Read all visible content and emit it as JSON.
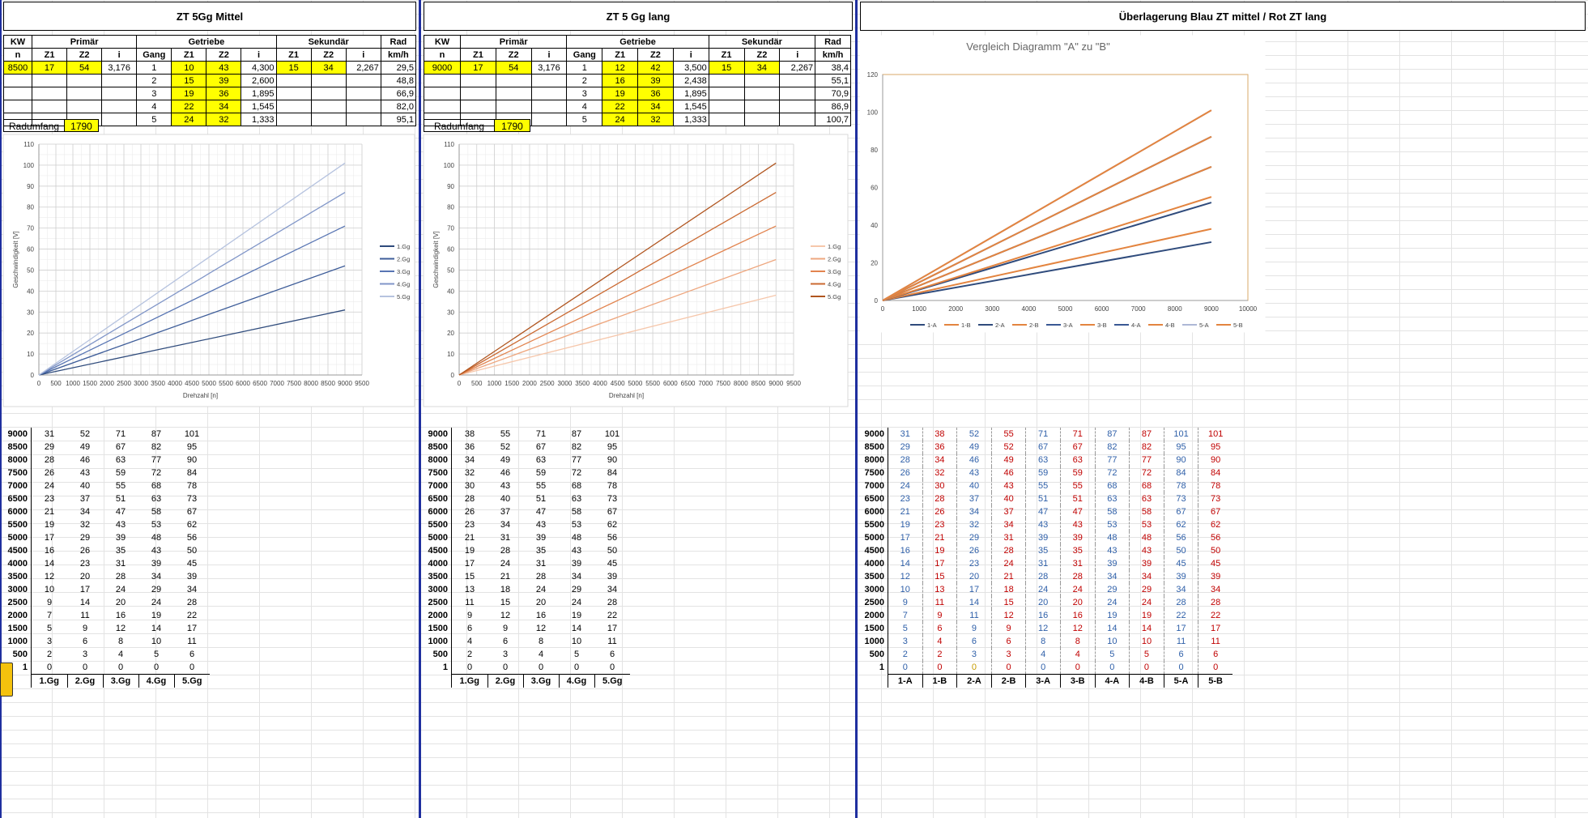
{
  "panels": [
    {
      "id": "A",
      "title": "ZT 5Gg Mittel",
      "kw": "8500",
      "primary": {
        "z1": "17",
        "z2": "54",
        "i": "3,176"
      },
      "secondary": {
        "z1": "15",
        "z2": "34",
        "i": "2,267"
      },
      "gears": [
        {
          "gang": "1",
          "z1": "10",
          "z2": "43",
          "i": "4,300",
          "kmh": "29,5"
        },
        {
          "gang": "2",
          "z1": "15",
          "z2": "39",
          "i": "2,600",
          "kmh": "48,8"
        },
        {
          "gang": "3",
          "z1": "19",
          "z2": "36",
          "i": "1,895",
          "kmh": "66,9"
        },
        {
          "gang": "4",
          "z1": "22",
          "z2": "34",
          "i": "1,545",
          "kmh": "82,0"
        },
        {
          "gang": "5",
          "z1": "24",
          "z2": "32",
          "i": "1,333",
          "kmh": "95,1"
        }
      ],
      "radumfang_label": "Radumfang",
      "radumfang": "1790"
    },
    {
      "id": "B",
      "title": "ZT 5 Gg lang",
      "kw": "9000",
      "primary": {
        "z1": "17",
        "z2": "54",
        "i": "3,176"
      },
      "secondary": {
        "z1": "15",
        "z2": "34",
        "i": "2,267"
      },
      "gears": [
        {
          "gang": "1",
          "z1": "12",
          "z2": "42",
          "i": "3,500",
          "kmh": "38,4"
        },
        {
          "gang": "2",
          "z1": "16",
          "z2": "39",
          "i": "2,438",
          "kmh": "55,1"
        },
        {
          "gang": "3",
          "z1": "19",
          "z2": "36",
          "i": "1,895",
          "kmh": "70,9"
        },
        {
          "gang": "4",
          "z1": "22",
          "z2": "34",
          "i": "1,545",
          "kmh": "86,9"
        },
        {
          "gang": "5",
          "z1": "24",
          "z2": "32",
          "i": "1,333",
          "kmh": "100,7"
        }
      ],
      "radumfang_label": "Radumfang",
      "radumfang": "1790"
    }
  ],
  "headers": {
    "kw": "KW",
    "primar": "Primär",
    "getriebe": "Getriebe",
    "sekundar": "Sekundär",
    "rad": "Rad",
    "n": "n",
    "z1": "Z1",
    "z2": "Z2",
    "i": "i",
    "gang": "Gang",
    "kmh": "km/h"
  },
  "comparison_title": "Überlagerung Blau ZT mittel / Rot ZT lang",
  "rpm_rows": [
    "9000",
    "8500",
    "8000",
    "7500",
    "7000",
    "6500",
    "6000",
    "5500",
    "5000",
    "4500",
    "4000",
    "3500",
    "3000",
    "2500",
    "2000",
    "1500",
    "1000",
    "500",
    "1"
  ],
  "table_A": [
    [
      "31",
      "52",
      "71",
      "87",
      "101"
    ],
    [
      "29",
      "49",
      "67",
      "82",
      "95"
    ],
    [
      "28",
      "46",
      "63",
      "77",
      "90"
    ],
    [
      "26",
      "43",
      "59",
      "72",
      "84"
    ],
    [
      "24",
      "40",
      "55",
      "68",
      "78"
    ],
    [
      "23",
      "37",
      "51",
      "63",
      "73"
    ],
    [
      "21",
      "34",
      "47",
      "58",
      "67"
    ],
    [
      "19",
      "32",
      "43",
      "53",
      "62"
    ],
    [
      "17",
      "29",
      "39",
      "48",
      "56"
    ],
    [
      "16",
      "26",
      "35",
      "43",
      "50"
    ],
    [
      "14",
      "23",
      "31",
      "39",
      "45"
    ],
    [
      "12",
      "20",
      "28",
      "34",
      "39"
    ],
    [
      "10",
      "17",
      "24",
      "29",
      "34"
    ],
    [
      "9",
      "14",
      "20",
      "24",
      "28"
    ],
    [
      "7",
      "11",
      "16",
      "19",
      "22"
    ],
    [
      "5",
      "9",
      "12",
      "14",
      "17"
    ],
    [
      "3",
      "6",
      "8",
      "10",
      "11"
    ],
    [
      "2",
      "3",
      "4",
      "5",
      "6"
    ],
    [
      "0",
      "0",
      "0",
      "0",
      "0"
    ]
  ],
  "table_B": [
    [
      "38",
      "55",
      "71",
      "87",
      "101"
    ],
    [
      "36",
      "52",
      "67",
      "82",
      "95"
    ],
    [
      "34",
      "49",
      "63",
      "77",
      "90"
    ],
    [
      "32",
      "46",
      "59",
      "72",
      "84"
    ],
    [
      "30",
      "43",
      "55",
      "68",
      "78"
    ],
    [
      "28",
      "40",
      "51",
      "63",
      "73"
    ],
    [
      "26",
      "37",
      "47",
      "58",
      "67"
    ],
    [
      "23",
      "34",
      "43",
      "53",
      "62"
    ],
    [
      "21",
      "31",
      "39",
      "48",
      "56"
    ],
    [
      "19",
      "28",
      "35",
      "43",
      "50"
    ],
    [
      "17",
      "24",
      "31",
      "39",
      "45"
    ],
    [
      "15",
      "21",
      "28",
      "34",
      "39"
    ],
    [
      "13",
      "18",
      "24",
      "29",
      "34"
    ],
    [
      "11",
      "15",
      "20",
      "24",
      "28"
    ],
    [
      "9",
      "12",
      "16",
      "19",
      "22"
    ],
    [
      "6",
      "9",
      "12",
      "14",
      "17"
    ],
    [
      "4",
      "6",
      "8",
      "10",
      "11"
    ],
    [
      "2",
      "3",
      "4",
      "5",
      "6"
    ],
    [
      "0",
      "0",
      "0",
      "0",
      "0"
    ]
  ],
  "table_C": [
    [
      "31",
      "38",
      "52",
      "55",
      "71",
      "71",
      "87",
      "87",
      "101",
      "101"
    ],
    [
      "29",
      "36",
      "49",
      "52",
      "67",
      "67",
      "82",
      "82",
      "95",
      "95"
    ],
    [
      "28",
      "34",
      "46",
      "49",
      "63",
      "63",
      "77",
      "77",
      "90",
      "90"
    ],
    [
      "26",
      "32",
      "43",
      "46",
      "59",
      "59",
      "72",
      "72",
      "84",
      "84"
    ],
    [
      "24",
      "30",
      "40",
      "43",
      "55",
      "55",
      "68",
      "68",
      "78",
      "78"
    ],
    [
      "23",
      "28",
      "37",
      "40",
      "51",
      "51",
      "63",
      "63",
      "73",
      "73"
    ],
    [
      "21",
      "26",
      "34",
      "37",
      "47",
      "47",
      "58",
      "58",
      "67",
      "67"
    ],
    [
      "19",
      "23",
      "32",
      "34",
      "43",
      "43",
      "53",
      "53",
      "62",
      "62"
    ],
    [
      "17",
      "21",
      "29",
      "31",
      "39",
      "39",
      "48",
      "48",
      "56",
      "56"
    ],
    [
      "16",
      "19",
      "26",
      "28",
      "35",
      "35",
      "43",
      "43",
      "50",
      "50"
    ],
    [
      "14",
      "17",
      "23",
      "24",
      "31",
      "31",
      "39",
      "39",
      "45",
      "45"
    ],
    [
      "12",
      "15",
      "20",
      "21",
      "28",
      "28",
      "34",
      "34",
      "39",
      "39"
    ],
    [
      "10",
      "13",
      "17",
      "18",
      "24",
      "24",
      "29",
      "29",
      "34",
      "34"
    ],
    [
      "9",
      "11",
      "14",
      "15",
      "20",
      "20",
      "24",
      "24",
      "28",
      "28"
    ],
    [
      "7",
      "9",
      "11",
      "12",
      "16",
      "16",
      "19",
      "19",
      "22",
      "22"
    ],
    [
      "5",
      "6",
      "9",
      "9",
      "12",
      "12",
      "14",
      "14",
      "17",
      "17"
    ],
    [
      "3",
      "4",
      "6",
      "6",
      "8",
      "8",
      "10",
      "10",
      "11",
      "11"
    ],
    [
      "2",
      "2",
      "3",
      "3",
      "4",
      "4",
      "5",
      "5",
      "6",
      "6"
    ],
    [
      "0",
      "0",
      "0",
      "0",
      "0",
      "0",
      "0",
      "0",
      "0",
      "0"
    ]
  ],
  "gear_labels": [
    "1.Gg",
    "2.Gg",
    "3.Gg",
    "4.Gg",
    "5.Gg"
  ],
  "compare_labels": [
    "1-A",
    "1-B",
    "2-A",
    "2-B",
    "3-A",
    "3-B",
    "4-A",
    "4-B",
    "5-A",
    "5-B"
  ],
  "colors": {
    "blues": [
      "#2f4b7c",
      "#3e5d99",
      "#5875b3",
      "#8196c8",
      "#b6c3df"
    ],
    "oranges": [
      "#f6c7ab",
      "#eea77f",
      "#e2844f",
      "#cb6a32",
      "#b0551f"
    ],
    "compare_orange": "#e3843f",
    "compare_border": "#d9a86a",
    "highlight": "#ffff00",
    "separator": "#1f2f9f"
  },
  "chart_data": [
    {
      "type": "line",
      "title": "",
      "xlabel": "Drehzahl [n]",
      "ylabel": "Geschwindigkeit [V]",
      "xlim": [
        0,
        9500
      ],
      "ylim": [
        0,
        110
      ],
      "xticks": [
        0,
        500,
        1000,
        1500,
        2000,
        2500,
        3000,
        3500,
        4000,
        4500,
        5000,
        5500,
        6000,
        6500,
        7000,
        7500,
        8000,
        8500,
        9000,
        9500
      ],
      "yticks": [
        0,
        10,
        20,
        30,
        40,
        50,
        60,
        70,
        80,
        90,
        100,
        110
      ],
      "x": [
        1,
        9000
      ],
      "series": [
        {
          "name": "1.Gg",
          "values": [
            0,
            31
          ]
        },
        {
          "name": "2.Gg",
          "values": [
            0,
            52
          ]
        },
        {
          "name": "3.Gg",
          "values": [
            0,
            71
          ]
        },
        {
          "name": "4.Gg",
          "values": [
            0,
            87
          ]
        },
        {
          "name": "5.Gg",
          "values": [
            0,
            101
          ]
        }
      ],
      "legend": "right",
      "grid": true
    },
    {
      "type": "line",
      "title": "",
      "xlabel": "Drehzahl [n]",
      "ylabel": "Geschwindigkeit [V]",
      "xlim": [
        0,
        9500
      ],
      "ylim": [
        0,
        110
      ],
      "xticks": [
        0,
        500,
        1000,
        1500,
        2000,
        2500,
        3000,
        3500,
        4000,
        4500,
        5000,
        5500,
        6000,
        6500,
        7000,
        7500,
        8000,
        8500,
        9000,
        9500
      ],
      "yticks": [
        0,
        10,
        20,
        30,
        40,
        50,
        60,
        70,
        80,
        90,
        100,
        110
      ],
      "x": [
        1,
        9000
      ],
      "series": [
        {
          "name": "1.Gg",
          "values": [
            0,
            38
          ]
        },
        {
          "name": "2.Gg",
          "values": [
            0,
            55
          ]
        },
        {
          "name": "3.Gg",
          "values": [
            0,
            71
          ]
        },
        {
          "name": "4.Gg",
          "values": [
            0,
            87
          ]
        },
        {
          "name": "5.Gg",
          "values": [
            0,
            101
          ]
        }
      ],
      "legend": "right",
      "grid": true
    },
    {
      "type": "line",
      "title": "Vergleich Diagramm \"A\" zu \"B\"",
      "xlabel": "",
      "ylabel": "",
      "xlim": [
        0,
        10000
      ],
      "ylim": [
        0,
        120
      ],
      "xticks": [
        0,
        1000,
        2000,
        3000,
        4000,
        5000,
        6000,
        7000,
        8000,
        9000,
        10000
      ],
      "yticks": [
        0,
        20,
        40,
        60,
        80,
        100,
        120
      ],
      "x": [
        1,
        9000
      ],
      "series": [
        {
          "name": "1-A",
          "values": [
            0,
            31
          ]
        },
        {
          "name": "1-B",
          "values": [
            0,
            38
          ]
        },
        {
          "name": "2-A",
          "values": [
            0,
            52
          ]
        },
        {
          "name": "2-B",
          "values": [
            0,
            55
          ]
        },
        {
          "name": "3-A",
          "values": [
            0,
            71
          ]
        },
        {
          "name": "3-B",
          "values": [
            0,
            71
          ]
        },
        {
          "name": "4-A",
          "values": [
            0,
            87
          ]
        },
        {
          "name": "4-B",
          "values": [
            0,
            87
          ]
        },
        {
          "name": "5-A",
          "values": [
            0,
            101
          ]
        },
        {
          "name": "5-B",
          "values": [
            0,
            101
          ]
        }
      ],
      "legend": "bottom",
      "grid": false
    }
  ]
}
